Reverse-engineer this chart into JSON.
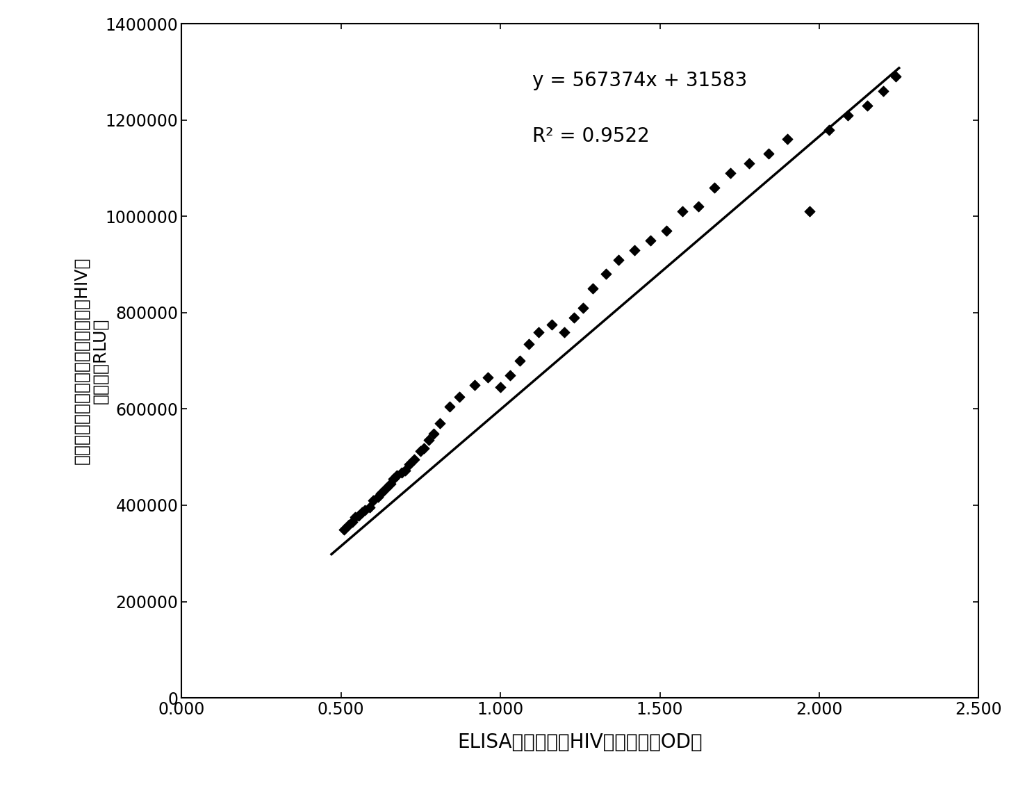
{
  "scatter_x": [
    0.51,
    0.525,
    0.535,
    0.545,
    0.555,
    0.565,
    0.575,
    0.59,
    0.6,
    0.615,
    0.625,
    0.64,
    0.655,
    0.665,
    0.675,
    0.69,
    0.7,
    0.715,
    0.73,
    0.75,
    0.76,
    0.775,
    0.79,
    0.81,
    0.84,
    0.87,
    0.92,
    0.96,
    1.0,
    1.03,
    1.06,
    1.09,
    1.12,
    1.16,
    1.2,
    1.23,
    1.26,
    1.29,
    1.33,
    1.37,
    1.42,
    1.47,
    1.52,
    1.57,
    1.62,
    1.67,
    1.72,
    1.78,
    1.84,
    1.9,
    1.97,
    2.03,
    2.09,
    2.15,
    2.2,
    2.24
  ],
  "scatter_y": [
    350000,
    360000,
    365000,
    375000,
    378000,
    385000,
    390000,
    395000,
    410000,
    418000,
    425000,
    435000,
    445000,
    455000,
    462000,
    468000,
    472000,
    485000,
    495000,
    512000,
    518000,
    535000,
    548000,
    570000,
    605000,
    625000,
    650000,
    665000,
    645000,
    670000,
    700000,
    735000,
    760000,
    775000,
    760000,
    790000,
    810000,
    850000,
    880000,
    910000,
    930000,
    950000,
    970000,
    1010000,
    1020000,
    1060000,
    1090000,
    1110000,
    1130000,
    1160000,
    1010000,
    1180000,
    1210000,
    1230000,
    1260000,
    1290000
  ],
  "slope": 567374,
  "intercept": 31583,
  "r_squared": 0.9522,
  "equation_text": "y = 567374x + 31583",
  "r2_text": "R² = 0.9522",
  "xlim": [
    0.0,
    2.5
  ],
  "ylim": [
    0,
    1400000
  ],
  "xticks": [
    0.0,
    0.5,
    1.0,
    1.5,
    2.0,
    2.5
  ],
  "yticks": [
    0,
    200000,
    400000,
    600000,
    800000,
    1000000,
    1200000,
    1400000
  ],
  "xlabel": "ELISA试剂盒测定HIV抗体样品的OD值",
  "ylabel_line1": "本发明化学发光免疫分析试剂盒测定HIV抗",
  "ylabel_line2": "体样品的RLU值",
  "marker_color": "#000000",
  "line_color": "#000000",
  "bg_color": "#ffffff",
  "equation_x": 1.1,
  "equation_y": 1270000,
  "r2_x": 1.1,
  "r2_y": 1155000,
  "line_x_start": 0.47,
  "line_x_end": 2.25
}
